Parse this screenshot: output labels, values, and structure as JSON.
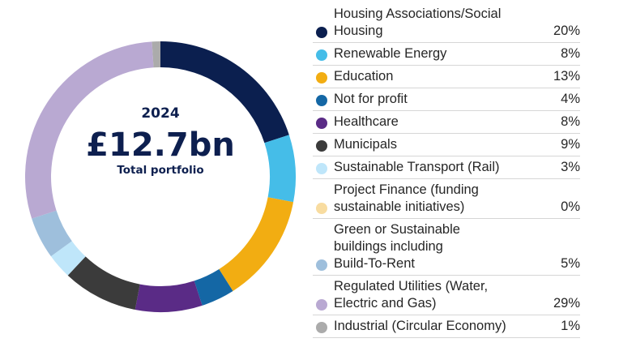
{
  "center": {
    "year": "2024",
    "amount": "£12.7bn",
    "caption": "Total portfolio"
  },
  "chart_data": {
    "type": "pie",
    "categories": [
      "Housing Associations/Social Housing",
      "Renewable Energy",
      "Education",
      "Not for profit",
      "Healthcare",
      "Municipals",
      "Sustainable Transport (Rail)",
      "Project Finance (funding sustainable initiatives)",
      "Green or Sustainable buildings including Build-To-Rent",
      "Regulated Utilities (Water, Electric and Gas)",
      "Industrial (Circular Economy)"
    ],
    "values": [
      20,
      8,
      13,
      4,
      8,
      9,
      3,
      0,
      5,
      29,
      1
    ],
    "colors": [
      "#0b1f4f",
      "#45bde8",
      "#f2ad12",
      "#1467a5",
      "#5a2b86",
      "#3b3b3b",
      "#bfe6fa",
      "#f8dca0",
      "#9ebfdc",
      "#b9a9d2",
      "#ababab"
    ],
    "legend": [
      {
        "label_lines": [
          "Housing Associations/Social",
          "Housing"
        ],
        "pct": "20%"
      },
      {
        "label_lines": [
          "Renewable Energy"
        ],
        "pct": "8%"
      },
      {
        "label_lines": [
          "Education"
        ],
        "pct": "13%"
      },
      {
        "label_lines": [
          "Not for profit"
        ],
        "pct": "4%"
      },
      {
        "label_lines": [
          "Healthcare"
        ],
        "pct": "8%"
      },
      {
        "label_lines": [
          "Municipals"
        ],
        "pct": "9%"
      },
      {
        "label_lines": [
          "Sustainable Transport (Rail)"
        ],
        "pct": "3%"
      },
      {
        "label_lines": [
          "Project Finance (funding",
          "sustainable initiatives)"
        ],
        "pct": "0%"
      },
      {
        "label_lines": [
          "Green or Sustainable",
          "buildings including",
          "Build-To-Rent"
        ],
        "pct": "5%"
      },
      {
        "label_lines": [
          "Regulated Utilities (Water,",
          "Electric and Gas)"
        ],
        "pct": "29%"
      },
      {
        "label_lines": [
          "Industrial (Circular Economy)"
        ],
        "pct": "1%"
      }
    ],
    "legend_position": "right"
  }
}
